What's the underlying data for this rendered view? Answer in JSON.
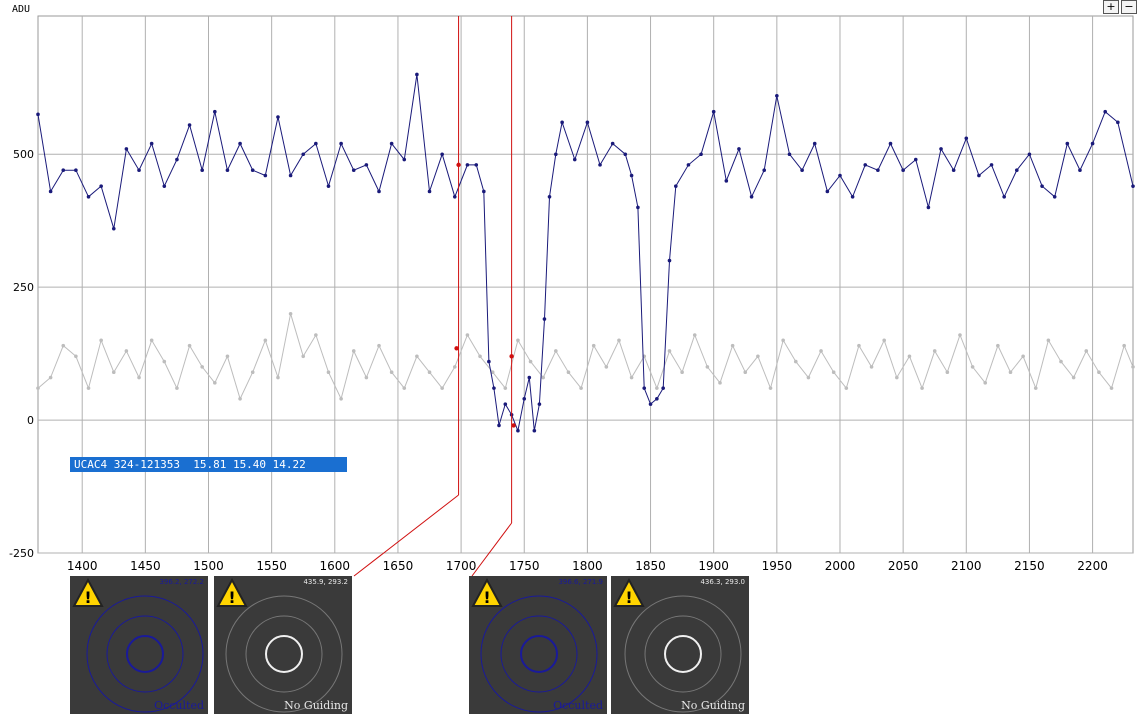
{
  "y_axis_label": "ADU",
  "zoom_in_label": "+",
  "zoom_out_label": "−",
  "star_label": "UCAC4 324-121353  15.81 15.40 14.22",
  "colors": {
    "target_series": "#1a1a7a",
    "comparison_series": "#bdbdbd",
    "marker_lines": "#d01010",
    "label_bg": "#1a6fd1",
    "grid": "#b0b0b0"
  },
  "thumbnails": [
    {
      "coords": "396.2, 272.2",
      "status": "Occulted",
      "status_color": "#1a1a99",
      "circle_color": "#1a1a99",
      "icon": "warning-icon"
    },
    {
      "coords": "435.9, 293.2",
      "status": "No Guiding",
      "status_color": "#e8e8e8",
      "circle_color": "#f0f0f0",
      "icon": "warning-icon"
    },
    {
      "coords": "396.6, 271.9",
      "status": "Occulted",
      "status_color": "#1a1a99",
      "circle_color": "#1a1a99",
      "icon": "warning-icon"
    },
    {
      "coords": "436.3, 293.0",
      "status": "No Guiding",
      "status_color": "#e8e8e8",
      "circle_color": "#f0f0f0",
      "icon": "warning-icon"
    }
  ],
  "chart_data": {
    "type": "line",
    "xlabel": "",
    "ylabel": "ADU",
    "xlim": [
      1365,
      2232
    ],
    "ylim": [
      -250,
      760
    ],
    "x_ticks": [
      1400,
      1450,
      1500,
      1550,
      1600,
      1650,
      1700,
      1750,
      1800,
      1850,
      1900,
      1950,
      2000,
      2050,
      2100,
      2150,
      2200
    ],
    "y_ticks": [
      -250,
      0,
      250,
      500
    ],
    "grid": true,
    "markers_x": [
      1698,
      1740
    ],
    "series": [
      {
        "color": "#1a1a7a",
        "x": [
          1365,
          1375,
          1385,
          1395,
          1405,
          1415,
          1425,
          1435,
          1445,
          1455,
          1465,
          1475,
          1485,
          1495,
          1505,
          1515,
          1525,
          1535,
          1545,
          1555,
          1565,
          1575,
          1585,
          1595,
          1605,
          1615,
          1625,
          1635,
          1645,
          1655,
          1665,
          1675,
          1685,
          1695,
          1705,
          1712,
          1718,
          1722,
          1726,
          1730,
          1735,
          1740,
          1745,
          1750,
          1754,
          1758,
          1762,
          1766,
          1770,
          1775,
          1780,
          1790,
          1800,
          1810,
          1820,
          1830,
          1835,
          1840,
          1845,
          1850,
          1855,
          1860,
          1865,
          1870,
          1880,
          1890,
          1900,
          1910,
          1920,
          1930,
          1940,
          1950,
          1960,
          1970,
          1980,
          1990,
          2000,
          2010,
          2020,
          2030,
          2040,
          2050,
          2060,
          2070,
          2080,
          2090,
          2100,
          2110,
          2120,
          2130,
          2140,
          2150,
          2160,
          2170,
          2180,
          2190,
          2200,
          2210,
          2220,
          2232
        ],
        "y": [
          575,
          430,
          470,
          470,
          420,
          440,
          360,
          510,
          470,
          520,
          440,
          490,
          555,
          470,
          580,
          470,
          520,
          470,
          460,
          570,
          460,
          500,
          520,
          440,
          520,
          470,
          480,
          430,
          520,
          490,
          650,
          430,
          500,
          420,
          480,
          480,
          430,
          110,
          60,
          -10,
          30,
          10,
          -20,
          40,
          80,
          -20,
          30,
          190,
          420,
          500,
          560,
          490,
          560,
          480,
          520,
          500,
          460,
          400,
          60,
          30,
          40,
          60,
          300,
          440,
          480,
          500,
          580,
          450,
          510,
          420,
          470,
          610,
          500,
          470,
          520,
          430,
          460,
          420,
          480,
          470,
          520,
          470,
          490,
          400,
          510,
          470,
          530,
          460,
          480,
          420,
          470,
          500,
          440,
          420,
          520,
          470,
          520,
          580,
          560,
          440
        ]
      },
      {
        "color": "#bdbdbd",
        "x": [
          1365,
          1375,
          1385,
          1395,
          1405,
          1415,
          1425,
          1435,
          1445,
          1455,
          1465,
          1475,
          1485,
          1495,
          1505,
          1515,
          1525,
          1535,
          1545,
          1555,
          1565,
          1575,
          1585,
          1595,
          1605,
          1615,
          1625,
          1635,
          1645,
          1655,
          1665,
          1675,
          1685,
          1695,
          1705,
          1715,
          1725,
          1735,
          1745,
          1755,
          1765,
          1775,
          1785,
          1795,
          1805,
          1815,
          1825,
          1835,
          1845,
          1855,
          1865,
          1875,
          1885,
          1895,
          1905,
          1915,
          1925,
          1935,
          1945,
          1955,
          1965,
          1975,
          1985,
          1995,
          2005,
          2015,
          2025,
          2035,
          2045,
          2055,
          2065,
          2075,
          2085,
          2095,
          2105,
          2115,
          2125,
          2135,
          2145,
          2155,
          2165,
          2175,
          2185,
          2195,
          2205,
          2215,
          2225,
          2232
        ],
        "y": [
          60,
          80,
          140,
          120,
          60,
          150,
          90,
          130,
          80,
          150,
          110,
          60,
          140,
          100,
          70,
          120,
          40,
          90,
          150,
          80,
          200,
          120,
          160,
          90,
          40,
          130,
          80,
          140,
          90,
          60,
          120,
          90,
          60,
          100,
          160,
          120,
          90,
          60,
          150,
          110,
          80,
          130,
          90,
          60,
          140,
          100,
          150,
          80,
          120,
          60,
          130,
          90,
          160,
          100,
          70,
          140,
          90,
          120,
          60,
          150,
          110,
          80,
          130,
          90,
          60,
          140,
          100,
          150,
          80,
          120,
          60,
          130,
          90,
          160,
          100,
          70,
          140,
          90,
          120,
          60,
          150,
          110,
          80,
          130,
          90,
          60,
          140,
          100
        ]
      }
    ]
  }
}
